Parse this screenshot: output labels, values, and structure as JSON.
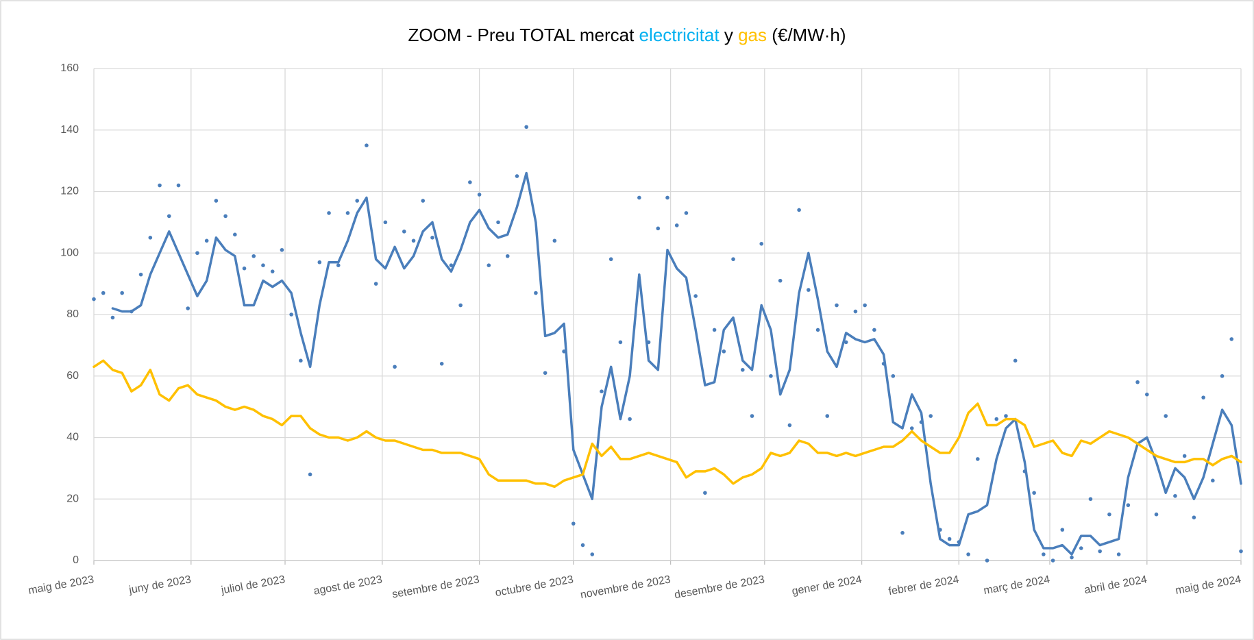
{
  "chart_data": {
    "type": "line",
    "title": {
      "prefix": "ZOOM - Preu TOTAL mercat",
      "conjunction": "y",
      "suffix": "(€/MW·h)"
    },
    "x": [
      0,
      3,
      6,
      9,
      12,
      15,
      18,
      21,
      24,
      27,
      30,
      33,
      36,
      39,
      42,
      45,
      48,
      51,
      54,
      57,
      60,
      63,
      66,
      69,
      72,
      75,
      78,
      81,
      84,
      87,
      90,
      93,
      96,
      99,
      102,
      105,
      108,
      111,
      114,
      117,
      120,
      123,
      126,
      129,
      132,
      135,
      138,
      141,
      144,
      147,
      150,
      153,
      156,
      159,
      162,
      165,
      168,
      171,
      174,
      177,
      180,
      183,
      186,
      189,
      192,
      195,
      198,
      201,
      204,
      207,
      210,
      213,
      216,
      219,
      222,
      225,
      228,
      231,
      234,
      237,
      240,
      243,
      246,
      249,
      252,
      255,
      258,
      261,
      264,
      267,
      270,
      273,
      276,
      279,
      282,
      285,
      288,
      291,
      294,
      297,
      300,
      303,
      306,
      309,
      312,
      315,
      318,
      321,
      324,
      327,
      330,
      333,
      336,
      339,
      342,
      345,
      348,
      351,
      354,
      357,
      360,
      363,
      366
    ],
    "xlim": [
      0,
      366
    ],
    "xticks": [
      {
        "value": 0,
        "label": "maig de 2023"
      },
      {
        "value": 31,
        "label": "juny de 2023"
      },
      {
        "value": 61,
        "label": "juliol de 2023"
      },
      {
        "value": 92,
        "label": "agost de 2023"
      },
      {
        "value": 123,
        "label": "setembre de 2023"
      },
      {
        "value": 153,
        "label": "octubre de 2023"
      },
      {
        "value": 184,
        "label": "novembre de 2023"
      },
      {
        "value": 214,
        "label": "desembre de 2023"
      },
      {
        "value": 245,
        "label": "gener de 2024"
      },
      {
        "value": 276,
        "label": "febrer de 2024"
      },
      {
        "value": 305,
        "label": "març de 2024"
      },
      {
        "value": 336,
        "label": "abril de 2024"
      },
      {
        "value": 366,
        "label": "maig de 2024"
      }
    ],
    "ylim": [
      0,
      160
    ],
    "yticks": [
      0,
      20,
      40,
      60,
      80,
      100,
      120,
      140,
      160
    ],
    "grid": true,
    "series": [
      {
        "name": "electricitat",
        "type": "line",
        "color": "#4a7ebb",
        "title_color": "#00b0f0",
        "values": [
          null,
          null,
          82,
          81,
          81,
          83,
          93,
          100,
          107,
          100,
          93,
          86,
          91,
          105,
          101,
          99,
          83,
          83,
          91,
          89,
          91,
          87,
          74,
          63,
          83,
          97,
          97,
          104,
          113,
          118,
          98,
          95,
          102,
          95,
          99,
          107,
          110,
          98,
          94,
          101,
          110,
          114,
          108,
          105,
          106,
          115,
          126,
          110,
          73,
          74,
          77,
          36,
          28,
          20,
          50,
          63,
          46,
          60,
          93,
          65,
          62,
          101,
          95,
          92,
          75,
          57,
          58,
          75,
          79,
          65,
          62,
          83,
          75,
          54,
          62,
          87,
          100,
          85,
          68,
          63,
          74,
          72,
          71,
          72,
          67,
          45,
          43,
          54,
          48,
          25,
          7,
          5,
          5,
          15,
          16,
          18,
          33,
          43,
          46,
          32,
          10,
          4,
          4,
          5,
          2,
          8,
          8,
          5,
          6,
          7,
          27,
          38,
          40,
          32,
          22,
          30,
          27,
          20,
          27,
          38,
          49,
          44,
          25
        ]
      },
      {
        "name": "gas",
        "type": "line",
        "color": "#ffc000",
        "title_color": "#ffc000",
        "values": [
          63,
          65,
          62,
          61,
          55,
          57,
          62,
          54,
          52,
          56,
          57,
          54,
          53,
          52,
          50,
          49,
          50,
          49,
          47,
          46,
          44,
          47,
          47,
          43,
          41,
          40,
          40,
          39,
          40,
          42,
          40,
          39,
          39,
          38,
          37,
          36,
          36,
          35,
          35,
          35,
          34,
          33,
          28,
          26,
          26,
          26,
          26,
          25,
          25,
          24,
          26,
          27,
          28,
          38,
          34,
          37,
          33,
          33,
          34,
          35,
          34,
          33,
          32,
          27,
          29,
          29,
          30,
          28,
          25,
          27,
          28,
          30,
          35,
          34,
          35,
          39,
          38,
          35,
          35,
          34,
          35,
          34,
          35,
          36,
          37,
          37,
          39,
          42,
          39,
          37,
          35,
          35,
          40,
          48,
          51,
          44,
          44,
          46,
          46,
          44,
          37,
          38,
          39,
          35,
          34,
          39,
          38,
          40,
          42,
          41,
          40,
          38,
          36,
          34,
          33,
          32,
          32,
          33,
          33,
          31,
          33,
          34,
          32
        ]
      }
    ],
    "points": {
      "type": "scatter",
      "color": "#4a7ebb",
      "values": [
        85,
        87,
        79,
        87,
        81,
        93,
        105,
        122,
        112,
        122,
        82,
        100,
        104,
        117,
        112,
        106,
        95,
        99,
        96,
        94,
        101,
        80,
        65,
        28,
        97,
        113,
        96,
        113,
        117,
        135,
        90,
        110,
        63,
        107,
        104,
        117,
        105,
        64,
        96,
        83,
        123,
        119,
        96,
        110,
        99,
        125,
        141,
        87,
        61,
        104,
        68,
        12,
        5,
        2,
        55,
        98,
        71,
        46,
        118,
        71,
        108,
        118,
        109,
        113,
        86,
        22,
        75,
        68,
        98,
        62,
        47,
        103,
        60,
        91,
        44,
        114,
        88,
        75,
        47,
        83,
        71,
        81,
        83,
        75,
        64,
        60,
        9,
        43,
        45,
        47,
        10,
        7,
        6,
        2,
        33,
        0,
        46,
        47,
        65,
        29,
        22,
        2,
        0,
        10,
        1,
        4,
        20,
        3,
        15,
        2,
        18,
        58,
        54,
        15,
        47,
        21,
        34,
        14,
        53,
        26,
        60,
        72,
        3
      ]
    }
  }
}
